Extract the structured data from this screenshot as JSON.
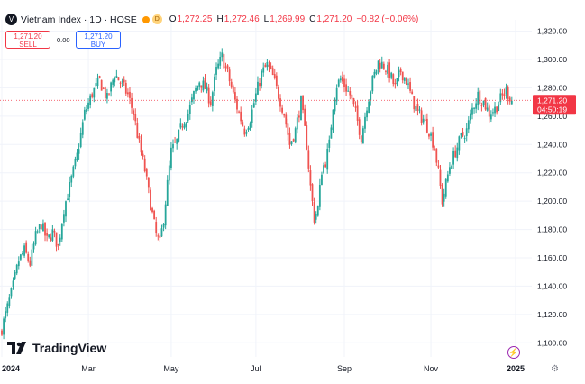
{
  "header": {
    "symbol": "Vietnam Index · 1D · HOSE",
    "symbol_icon": "V",
    "status_badge": "D",
    "o_label": "O",
    "o_value": "1,272.25",
    "h_label": "H",
    "h_value": "1,272.46",
    "l_label": "L",
    "l_value": "1,269.99",
    "c_label": "C",
    "c_value": "1,271.20",
    "change": "−0.82 (−0.06%)"
  },
  "trade": {
    "sell_price": "1,271.20",
    "sell_label": "SELL",
    "spread": "0.00",
    "buy_price": "1,271.20",
    "buy_label": "BUY"
  },
  "price_tag": {
    "price": "1,271.20",
    "countdown": "04:50:19"
  },
  "branding": {
    "logo_text": "TradingView",
    "logo_icon": "tradingview-logo-icon"
  },
  "colors": {
    "up": "#26a69a",
    "down": "#ef5350",
    "axis_text": "#131722",
    "grid": "#f0f3fa"
  },
  "chart_data": {
    "type": "candlestick",
    "title": "Vietnam Index · 1D · HOSE",
    "ylim": [
      1090,
      1328
    ],
    "yticks": [
      "1,100.00",
      "1,120.00",
      "1,140.00",
      "1,160.00",
      "1,180.00",
      "1,200.00",
      "1,220.00",
      "1,240.00",
      "1,260.00",
      "1,280.00",
      "1,300.00",
      "1,320.00"
    ],
    "yticks_values": [
      1100,
      1120,
      1140,
      1160,
      1180,
      1200,
      1220,
      1240,
      1260,
      1280,
      1300,
      1320
    ],
    "xticks": [
      "2024",
      "Mar",
      "May",
      "Jul",
      "Sep",
      "Nov",
      "2025"
    ],
    "xticks_index": [
      0,
      46,
      90,
      135,
      182,
      228,
      273
    ],
    "last_price": 1271.2,
    "close_path": [
      [
        0,
        1110
      ],
      [
        3,
        1125
      ],
      [
        6,
        1140
      ],
      [
        9,
        1158
      ],
      [
        12,
        1165
      ],
      [
        15,
        1156
      ],
      [
        18,
        1175
      ],
      [
        21,
        1184
      ],
      [
        24,
        1172
      ],
      [
        27,
        1178
      ],
      [
        30,
        1168
      ],
      [
        33,
        1195
      ],
      [
        36,
        1210
      ],
      [
        40,
        1232
      ],
      [
        44,
        1262
      ],
      [
        48,
        1276
      ],
      [
        52,
        1285
      ],
      [
        56,
        1272
      ],
      [
        60,
        1290
      ],
      [
        64,
        1282
      ],
      [
        67,
        1275
      ],
      [
        70,
        1262
      ],
      [
        73,
        1240
      ],
      [
        76,
        1222
      ],
      [
        79,
        1198
      ],
      [
        82,
        1176
      ],
      [
        84,
        1170
      ],
      [
        86,
        1188
      ],
      [
        88,
        1212
      ],
      [
        90,
        1235
      ],
      [
        93,
        1242
      ],
      [
        96,
        1255
      ],
      [
        99,
        1262
      ],
      [
        102,
        1275
      ],
      [
        105,
        1285
      ],
      [
        108,
        1280
      ],
      [
        111,
        1270
      ],
      [
        114,
        1292
      ],
      [
        117,
        1302
      ],
      [
        120,
        1290
      ],
      [
        123,
        1275
      ],
      [
        126,
        1262
      ],
      [
        129,
        1250
      ],
      [
        132,
        1258
      ],
      [
        135,
        1275
      ],
      [
        138,
        1290
      ],
      [
        141,
        1296
      ],
      [
        144,
        1288
      ],
      [
        147,
        1275
      ],
      [
        150,
        1262
      ],
      [
        153,
        1240
      ],
      [
        156,
        1250
      ],
      [
        159,
        1270
      ],
      [
        162,
        1240
      ],
      [
        164,
        1210
      ],
      [
        166,
        1188
      ],
      [
        168,
        1195
      ],
      [
        170,
        1222
      ],
      [
        172,
        1228
      ],
      [
        174,
        1240
      ],
      [
        176,
        1268
      ],
      [
        178,
        1282
      ],
      [
        180,
        1286
      ],
      [
        182,
        1282
      ],
      [
        185,
        1275
      ],
      [
        188,
        1262
      ],
      [
        191,
        1245
      ],
      [
        194,
        1268
      ],
      [
        197,
        1285
      ],
      [
        200,
        1298
      ],
      [
        203,
        1296
      ],
      [
        206,
        1290
      ],
      [
        209,
        1280
      ],
      [
        212,
        1292
      ],
      [
        215,
        1285
      ],
      [
        218,
        1272
      ],
      [
        221,
        1262
      ],
      [
        224,
        1258
      ],
      [
        227,
        1250
      ],
      [
        230,
        1238
      ],
      [
        232,
        1220
      ],
      [
        234,
        1200
      ],
      [
        236,
        1212
      ],
      [
        238,
        1225
      ],
      [
        241,
        1235
      ],
      [
        244,
        1245
      ],
      [
        247,
        1250
      ],
      [
        250,
        1265
      ],
      [
        253,
        1275
      ],
      [
        256,
        1270
      ],
      [
        259,
        1262
      ],
      [
        262,
        1265
      ],
      [
        265,
        1272
      ],
      [
        268,
        1278
      ],
      [
        271,
        1271.2
      ]
    ]
  }
}
